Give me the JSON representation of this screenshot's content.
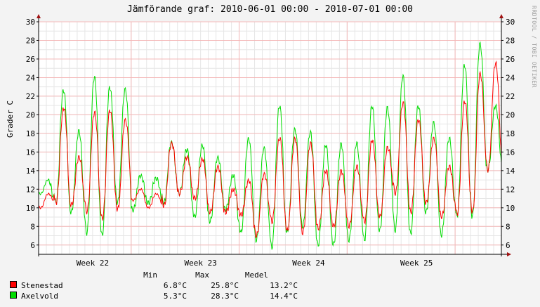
{
  "title": "Jämförande graf: 2010-06-01 00:00 - 2010-07-01 00:00",
  "watermark": "RRDTOOL / TOBI OETIKER",
  "colors": {
    "background": "#f3f3f3",
    "plot_bg": "#ffffff",
    "grid_minor": "#e6e6e6",
    "grid_major": "#f4b8b8",
    "axis": "#000000",
    "arrow": "#a01010",
    "stenestad": "#ff0000",
    "axelvold": "#00dd00"
  },
  "legend": {
    "header": {
      "min": "Min",
      "max": "Max",
      "medel": "Medel"
    },
    "items": [
      {
        "name": "Stenestad",
        "color": "#ff0000",
        "min": "6.8°C",
        "max": "25.8°C",
        "medel": "13.2°C"
      },
      {
        "name": "Axelvold",
        "color": "#00dd00",
        "min": "5.3°C",
        "max": "28.3°C",
        "medel": "14.4°C"
      }
    ]
  },
  "chart_data": {
    "type": "line",
    "title": "Jämförande graf: 2010-06-01 00:00 - 2010-07-01 00:00",
    "xlabel": "",
    "ylabel": "Grader C",
    "ylim": [
      5,
      30
    ],
    "yticks": [
      6,
      8,
      10,
      12,
      14,
      16,
      18,
      20,
      22,
      24,
      26,
      28,
      30
    ],
    "x_range": [
      "2010-06-01",
      "2010-07-01"
    ],
    "x_tick_labels": [
      {
        "label": "Week 22",
        "position": 3.5
      },
      {
        "label": "Week 23",
        "position": 10.5
      },
      {
        "label": "Week 24",
        "position": 17.5
      },
      {
        "label": "Week 25",
        "position": 24.5
      }
    ],
    "x_unit": "days since 2010-06-01",
    "grid": true,
    "series": [
      {
        "name": "Stenestad",
        "color": "#ff0000",
        "daily_max": [
          11.5,
          20.8,
          15.5,
          20.3,
          20.5,
          19.5,
          12.0,
          11.5,
          17.0,
          15.5,
          15.3,
          14.5,
          12.0,
          13.0,
          13.7,
          17.5,
          17.5,
          17.0,
          14.0,
          14.0,
          14.5,
          17.3,
          16.5,
          21.3,
          19.5,
          17.5,
          14.5,
          21.5,
          24.5,
          25.6,
          17.3
        ],
        "daily_min": [
          10.0,
          10.5,
          10.3,
          9.5,
          8.8,
          9.8,
          10.8,
          10.0,
          10.2,
          11.5,
          11.0,
          9.5,
          9.5,
          9.2,
          7.0,
          8.5,
          7.5,
          7.3,
          7.8,
          8.0,
          8.0,
          8.5,
          9.0,
          11.5,
          9.5,
          10.5,
          9.0,
          9.3,
          9.5,
          14.0,
          13.5
        ]
      },
      {
        "name": "Axelvold",
        "color": "#00dd00",
        "daily_max": [
          13.0,
          22.7,
          18.3,
          24.1,
          23.0,
          22.8,
          13.5,
          13.2,
          17.1,
          16.3,
          16.8,
          15.5,
          13.5,
          17.5,
          16.5,
          21.0,
          18.5,
          18.2,
          16.8,
          16.9,
          17.0,
          21.0,
          20.8,
          24.2,
          21.0,
          19.2,
          17.5,
          25.4,
          27.7,
          21.0,
          21.0
        ],
        "daily_min": [
          11.5,
          10.5,
          9.5,
          7.2,
          7.0,
          10.5,
          9.7,
          10.5,
          10.5,
          11.5,
          9.0,
          8.5,
          9.8,
          7.3,
          6.5,
          5.7,
          7.3,
          8.0,
          6.0,
          6.0,
          6.5,
          6.5,
          7.5,
          7.5,
          7.2,
          9.5,
          7.0,
          9.0,
          9.0,
          14.0,
          14.0
        ]
      }
    ]
  }
}
